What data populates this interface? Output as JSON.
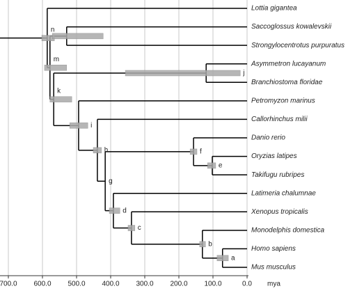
{
  "chart_data": {
    "type": "tree",
    "x_label": "mya",
    "xlim": [
      700,
      0
    ],
    "xticks": [
      {
        "value": 700,
        "label": "700.0"
      },
      {
        "value": 600,
        "label": "600.0"
      },
      {
        "value": 500,
        "label": "500.0"
      },
      {
        "value": 400,
        "label": "400.0"
      },
      {
        "value": 300,
        "label": "300.0"
      },
      {
        "value": 200,
        "label": "200.0"
      },
      {
        "value": 100,
        "label": "100.0"
      },
      {
        "value": 0,
        "label": "0.0"
      }
    ],
    "grid": true,
    "tree": {
      "label": "n",
      "age": 586,
      "ci": [
        602,
        565
      ],
      "children": [
        {
          "name": "Lottia gigantea"
        },
        {
          "label": "m",
          "age": 578,
          "ci": [
            594,
            529
          ],
          "children": [
            {
              "age": 529,
              "ci": [
                571,
                422
              ],
              "children": [
                {
                  "name": "Saccoglossus kowalevskii"
                },
                {
                  "name": "Strongylocentrotus purpuratus"
                }
              ]
            },
            {
              "label": "k",
              "age": 567,
              "ci": [
                578,
                514
              ],
              "children": [
                {
                  "label": "j",
                  "age": 120,
                  "ci": [
                    357,
                    20
                  ],
                  "children": [
                    {
                      "name": "Asymmetron lucayanum"
                    },
                    {
                      "name": "Branchiostoma floridae"
                    }
                  ]
                },
                {
                  "label": "i",
                  "age": 494,
                  "ci": [
                    520,
                    467
                  ],
                  "children": [
                    {
                      "name": "Petromyzon marinus"
                    },
                    {
                      "label": "h",
                      "age": 439,
                      "ci": [
                        451,
                        427
                      ],
                      "children": [
                        {
                          "name": "Callorhinchus milii"
                        },
                        {
                          "label": "g",
                          "age": 416,
                          "children": [
                            {
                              "label": "f",
                              "age": 157,
                              "ci": [
                                167,
                                147
                              ],
                              "children": [
                                {
                                  "name": "Danio rerio"
                                },
                                {
                                  "label": "e",
                                  "age": 102,
                                  "ci": [
                                    116,
                                    92
                                  ],
                                  "children": [
                                    {
                                      "name": "Oryzias latipes"
                                    },
                                    {
                                      "name": "Takifugu rubripes"
                                    }
                                  ]
                                }
                              ]
                            },
                            {
                              "label": "d",
                              "age": 392,
                              "ci": [
                                404,
                                373
                              ],
                              "children": [
                                {
                                  "name": "Latimeria chalumnae"
                                },
                                {
                                  "label": "c",
                                  "age": 339,
                                  "ci": [
                                    349,
                                    329
                                  ],
                                  "children": [
                                    {
                                      "name": "Xenopus tropicalis"
                                    },
                                    {
                                      "label": "b",
                                      "age": 131,
                                      "ci": [
                                        139,
                                        122
                                      ],
                                      "children": [
                                        {
                                          "name": "Monodelphis domestica"
                                        },
                                        {
                                          "label": "a",
                                          "age": 72,
                                          "ci": [
                                            88,
                                            55
                                          ],
                                          "children": [
                                            {
                                              "name": "Homo sapiens"
                                            },
                                            {
                                              "name": "Mus musculus"
                                            }
                                          ]
                                        }
                                      ]
                                    }
                                  ]
                                }
                              ]
                            }
                          ]
                        }
                      ]
                    }
                  ]
                }
              ]
            }
          ]
        }
      ]
    }
  }
}
